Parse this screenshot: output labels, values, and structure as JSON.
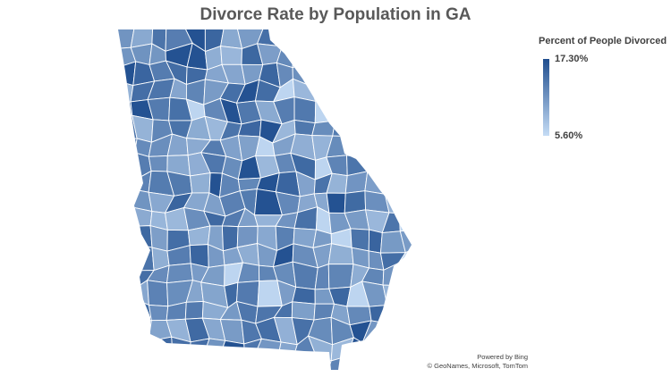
{
  "title": "Divorce Rate by Population in GA",
  "legend": {
    "title": "Percent of People Divorced",
    "max_label": "17.30%",
    "min_label": "5.60%",
    "color_max": "#1f4e8f",
    "color_min": "#c5dcf5"
  },
  "attribution": {
    "line1": "Powered by Bing",
    "line2": "© GeoNames, Microsoft, TomTom"
  },
  "colors": {
    "border": "#ffffff",
    "background": "#ffffff"
  }
}
